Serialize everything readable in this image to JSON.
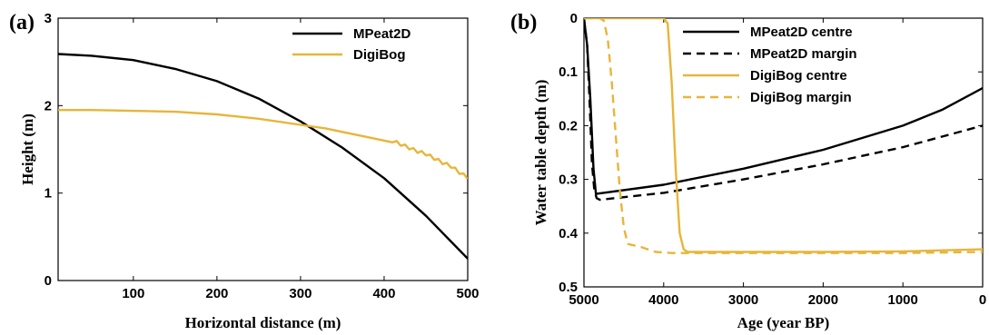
{
  "colors": {
    "mpeat": "#000000",
    "digibog": "#e8b53a"
  },
  "chart_data": [
    {
      "type": "line",
      "panel_label": "(a)",
      "xlabel": "Horizontal distance (m)",
      "ylabel": "Height (m)",
      "xlim": [
        10,
        500
      ],
      "ylim": [
        0,
        3
      ],
      "xticks": [
        100,
        200,
        300,
        400,
        500
      ],
      "yticks": [
        0,
        1,
        2,
        3
      ],
      "legend_position": "top-right",
      "series": [
        {
          "name": "MPeat2D",
          "style": "solid",
          "color": "#000000",
          "x": [
            10,
            50,
            100,
            150,
            200,
            250,
            300,
            350,
            400,
            450,
            500
          ],
          "y": [
            2.59,
            2.57,
            2.52,
            2.42,
            2.28,
            2.08,
            1.82,
            1.52,
            1.17,
            0.74,
            0.25
          ]
        },
        {
          "name": "DigiBog",
          "style": "solid",
          "color": "#e8b53a",
          "x": [
            10,
            50,
            100,
            150,
            200,
            250,
            300,
            330,
            360,
            390,
            410,
            420,
            430,
            440,
            450,
            460,
            470,
            480,
            490,
            500
          ],
          "y": [
            1.95,
            1.95,
            1.94,
            1.93,
            1.9,
            1.85,
            1.78,
            1.74,
            1.68,
            1.62,
            1.58,
            1.54,
            1.5,
            1.46,
            1.43,
            1.38,
            1.33,
            1.29,
            1.22,
            1.16
          ]
        }
      ]
    },
    {
      "type": "line",
      "panel_label": "(b)",
      "xlabel": "Age (year BP)",
      "ylabel": "Water table depth (m)",
      "xlim": [
        5000,
        0
      ],
      "ylim": [
        0,
        0.5
      ],
      "y_reversed": true,
      "xticks": [
        5000,
        4000,
        3000,
        2000,
        1000,
        0
      ],
      "yticks": [
        0,
        0.1,
        0.2,
        0.3,
        0.4,
        0.5
      ],
      "ytick_labels": [
        "0",
        "0.1",
        "0.2",
        "0.3",
        "0.4",
        "0.5"
      ],
      "legend_position": "top-right",
      "series": [
        {
          "name": "MPeat2D centre",
          "style": "solid",
          "color": "#000000",
          "x": [
            5000,
            4960,
            4920,
            4880,
            4850,
            4000,
            3000,
            2000,
            1000,
            500,
            0
          ],
          "y": [
            0,
            0.05,
            0.15,
            0.28,
            0.327,
            0.31,
            0.28,
            0.245,
            0.2,
            0.17,
            0.13
          ]
        },
        {
          "name": "MPeat2D margin",
          "style": "dashed",
          "color": "#000000",
          "x": [
            5000,
            4960,
            4930,
            4900,
            4870,
            4840,
            4800,
            4000,
            3000,
            2000,
            1000,
            0
          ],
          "y": [
            0,
            0.05,
            0.15,
            0.27,
            0.32,
            0.335,
            0.338,
            0.325,
            0.3,
            0.272,
            0.24,
            0.2
          ]
        },
        {
          "name": "DigiBog centre",
          "style": "solid",
          "color": "#e8b53a",
          "x": [
            5000,
            4000,
            3950,
            3900,
            3850,
            3800,
            3750,
            3700,
            3000,
            2000,
            1000,
            0
          ],
          "y": [
            0,
            0,
            0.01,
            0.12,
            0.28,
            0.4,
            0.43,
            0.435,
            0.435,
            0.435,
            0.434,
            0.43
          ]
        },
        {
          "name": "DigiBog margin",
          "style": "dashed",
          "color": "#e8b53a",
          "x": [
            5000,
            4800,
            4750,
            4700,
            4650,
            4600,
            4550,
            4500,
            4450,
            4400,
            4300,
            4200,
            4100,
            3900,
            3000,
            2000,
            1000,
            0
          ],
          "y": [
            0,
            0,
            0.005,
            0.04,
            0.12,
            0.22,
            0.32,
            0.39,
            0.42,
            0.422,
            0.425,
            0.43,
            0.435,
            0.437,
            0.437,
            0.437,
            0.437,
            0.435
          ]
        }
      ]
    }
  ]
}
